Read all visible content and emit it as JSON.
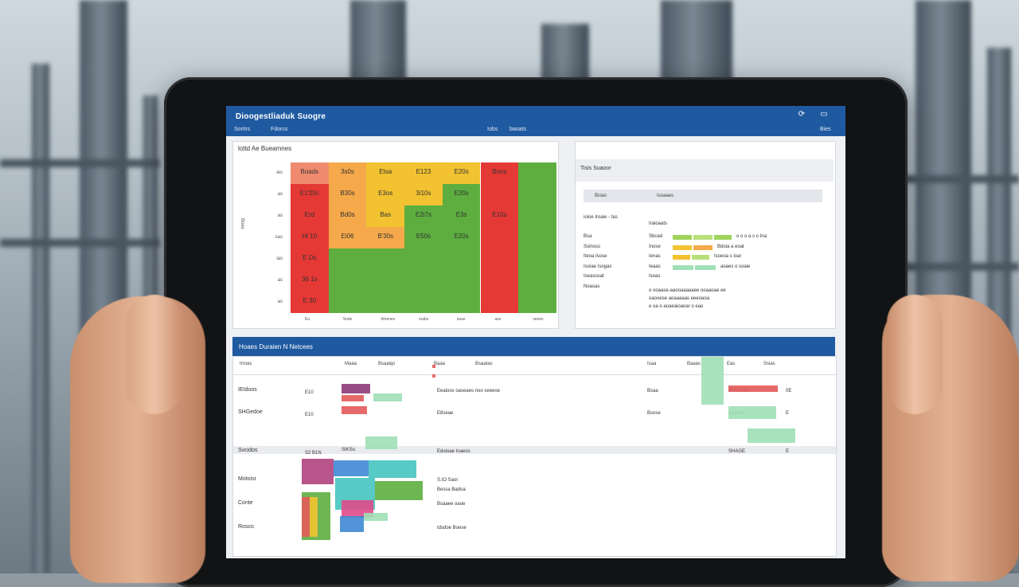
{
  "app": {
    "title": "Dioogestliaduk Suogre",
    "nav_left": [
      "Soritrs",
      "Fdorcs"
    ],
    "nav_mid": [
      "Iobs",
      "baoats"
    ]
  },
  "heatmap": {
    "title": "lottd Ae Bueamnes",
    "rows": [
      [
        "Boads",
        "3s0s",
        "Etsa",
        "E123",
        "E20s",
        "Bons",
        ""
      ],
      [
        "E1'20c",
        "B30s",
        "E3os",
        "3i10s",
        "E20s",
        "",
        ""
      ],
      [
        "Erd",
        "Bd0s",
        "Bas",
        "E2i7s",
        "E3s",
        "E10s",
        ""
      ],
      [
        "Hi 10",
        "Ei06",
        "B'30s",
        "E50s",
        "E20s",
        "",
        ""
      ],
      [
        "E Ds",
        "",
        "",
        "",
        "",
        "",
        ""
      ],
      [
        "36 1s",
        "",
        "",
        "",
        "",
        "",
        ""
      ],
      [
        "E 30",
        "",
        "",
        "",
        "",
        "",
        ""
      ]
    ],
    "row_labels": [
      "ies",
      "as",
      "as",
      "sas",
      "ias",
      "as",
      "as"
    ],
    "col_labels": [
      "Eu",
      "Snde",
      "dmenes",
      "srabs",
      "asas",
      "aos",
      "seoes"
    ],
    "y_axis": "Boes"
  },
  "status": {
    "title": "Tisis Suaoor",
    "head": [
      "Bioas",
      "Isoaaes"
    ],
    "intro_left": "ioioe Iroaie - tas",
    "intro_right": "Iraioaats",
    "labels": [
      "Bsa",
      "Ssinoss",
      "Iteoa Isose",
      "Isoiae Isogas",
      "Iseasosat",
      "Noasas"
    ],
    "items": [
      "Sbcad",
      "Inose",
      "Ienas",
      "Ieaas",
      "Isoas"
    ],
    "trail": [
      "o o o a s o Ina",
      "Bdoia a eoat",
      "Isoeoa s ioar",
      "aoaes o soaie"
    ],
    "notes": [
      "o ooaase-aaooaaaaaee ooaaoae ee",
      "oaooese aoaaaaas eeeoaoa",
      "e oa o aoaeaioaoar o eao"
    ]
  },
  "table": {
    "title": "Hoaes Duraien N Netcees",
    "headers": [
      "Irroas",
      "Maaa",
      "Bsaaiqs",
      "Baaa",
      "Bsaatas",
      "Isaa",
      "Baaas",
      "Eas",
      "Ssias"
    ],
    "rows": [
      {
        "label": "IEIdoos",
        "tag": "E10",
        "desc": "Eeaioos oaseaes noo seeeoe",
        "status": "Bsaa",
        "code": "Sl0S6 B01",
        "val": "0E"
      },
      {
        "label": "SHGedoe",
        "tag": "E10",
        "desc": "E8seae",
        "status": "Bsose",
        "code": "Ssaooe",
        "val": "E"
      },
      {
        "label": "Svcidos",
        "tag": "S2 B1N",
        "sub": "SIKSo",
        "desc": "Edoioae Ioaeos",
        "code": "SHAGE",
        "val": "E"
      },
      {
        "label": "Motoisr",
        "desc": "S.IO Saor",
        "desc2": "Bessa Badoa"
      },
      {
        "label": "Conte",
        "desc": "Bsaaee oaoe"
      },
      {
        "label": "Rosco",
        "desc": "Idsdoe Boese"
      }
    ]
  },
  "colors": {
    "accent": "#1f5aa1",
    "red": "#e53935",
    "orange": "#f5a94a",
    "yellow": "#f2c230",
    "green": "#5dae3f"
  }
}
